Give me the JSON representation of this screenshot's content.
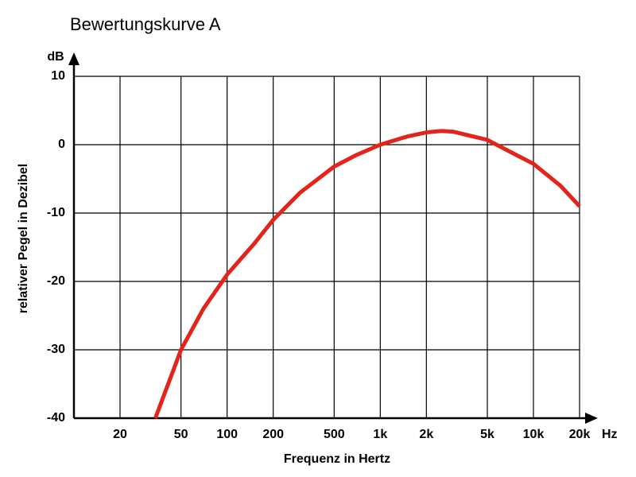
{
  "chart_data": {
    "type": "line",
    "title": "Bewertungskurve A",
    "x_label": "Frequenz in Hertz",
    "y_label": "relativer Pegel in Dezibel",
    "x_unit": "Hz",
    "y_unit": "dB",
    "x": [
      34,
      50,
      70,
      100,
      150,
      200,
      300,
      500,
      700,
      1000,
      1500,
      2000,
      2500,
      3000,
      5000,
      7000,
      10000,
      15000,
      20000
    ],
    "values": [
      -40,
      -30,
      -24,
      -19,
      -14.5,
      -11,
      -7,
      -3.2,
      -1.5,
      0,
      1.2,
      1.8,
      2,
      1.9,
      0.7,
      -1,
      -2.8,
      -6,
      -9
    ],
    "color": "#e3241b",
    "xscale": "log",
    "xlim": [
      10,
      20000
    ],
    "xticks": [
      20,
      50,
      100,
      200,
      500,
      {
        "value": 1000,
        "label": "1k"
      },
      {
        "value": 2000,
        "label": "2k"
      },
      {
        "value": 5000,
        "label": "5k"
      },
      {
        "value": 10000,
        "label": "10k"
      },
      {
        "value": 20000,
        "label": "20k"
      }
    ],
    "ylim": [
      -40,
      10
    ],
    "yticks": [
      -40,
      -30,
      -20,
      -10,
      0,
      10
    ],
    "grid": true
  }
}
